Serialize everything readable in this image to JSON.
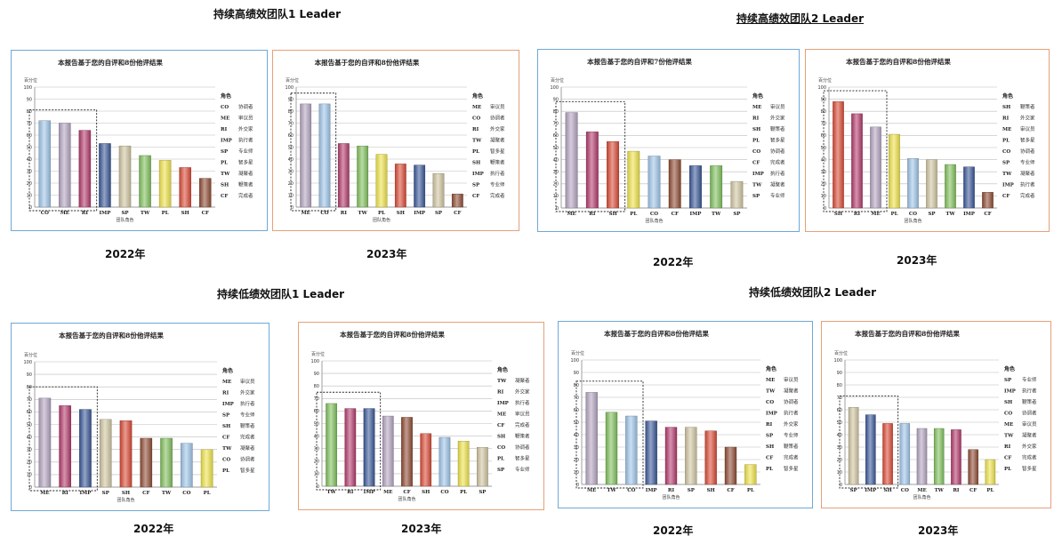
{
  "page": {
    "group_titles": [
      "持续高绩效团队1 Leader",
      "持续高绩效团队2 Leader",
      "持续低绩效团队1 Leader",
      "持续低绩效团队2 Leader"
    ],
    "year_labels": [
      "2022年",
      "2023年",
      "2022年",
      "2023年",
      "2022年",
      "2023年",
      "2022年",
      "2023年"
    ]
  },
  "colors": {
    "CO": "#9ec4e8",
    "ME": "#b3a4c0",
    "RI": "#b23a6b",
    "IMP": "#3a5797",
    "SP": "#cfc4a0",
    "TW": "#7fbf5c",
    "PL": "#eee24a",
    "SH": "#d94a36",
    "CF": "#8e4b34",
    "border_blue": "#6fa8d6",
    "border_orange": "#e6a07a"
  },
  "chart_data": [
    {
      "type": "bar",
      "title": "本报告基于您的自评和8份他评结果",
      "ylabel": "百分位",
      "xlabel": "团队角色",
      "ylim": [
        0,
        100
      ],
      "y_ticks": [
        0,
        10,
        20,
        30,
        40,
        50,
        60,
        70,
        80,
        90,
        100
      ],
      "categories": [
        "CO",
        "ME",
        "RI",
        "IMP",
        "SP",
        "TW",
        "PL",
        "SH",
        "CF"
      ],
      "values": [
        72,
        70,
        64,
        53,
        51,
        43,
        39,
        33,
        24
      ],
      "highlight_count": 3,
      "legend_title": "角色",
      "legend": [
        {
          "code": "CO",
          "name": "协调者"
        },
        {
          "code": "ME",
          "name": "审议员"
        },
        {
          "code": "RI",
          "name": "外交家"
        },
        {
          "code": "IMP",
          "name": "执行者"
        },
        {
          "code": "SP",
          "name": "专业师"
        },
        {
          "code": "PL",
          "name": "智多星"
        },
        {
          "code": "TW",
          "name": "凝聚者"
        },
        {
          "code": "SH",
          "name": "鞭策者"
        },
        {
          "code": "CF",
          "name": "完成者"
        }
      ]
    },
    {
      "type": "bar",
      "title": "本报告基于您的自评和8份他评结果",
      "ylabel": "百分位",
      "xlabel": "团队角色",
      "ylim": [
        0,
        100
      ],
      "y_ticks": [
        0,
        10,
        20,
        30,
        40,
        50,
        60,
        70,
        80,
        90,
        100
      ],
      "categories": [
        "ME",
        "CO",
        "RI",
        "TW",
        "PL",
        "SH",
        "IMP",
        "SP",
        "CF"
      ],
      "values": [
        86,
        86,
        53,
        51,
        44,
        36,
        35,
        28,
        11
      ],
      "highlight_count": 2,
      "legend_title": "角色",
      "legend": [
        {
          "code": "ME",
          "name": "审议员"
        },
        {
          "code": "CO",
          "name": "协调者"
        },
        {
          "code": "RI",
          "name": "外交家"
        },
        {
          "code": "TW",
          "name": "凝聚者"
        },
        {
          "code": "PL",
          "name": "智多星"
        },
        {
          "code": "SH",
          "name": "鞭策者"
        },
        {
          "code": "IMP",
          "name": "执行者"
        },
        {
          "code": "SP",
          "name": "专业师"
        },
        {
          "code": "CF",
          "name": "完成者"
        }
      ]
    },
    {
      "type": "bar",
      "title": "本报告基于您的自评和7份他评结果",
      "ylabel": "百分位",
      "xlabel": "团队角色",
      "ylim": [
        0,
        100
      ],
      "y_ticks": [
        0,
        10,
        20,
        30,
        40,
        50,
        60,
        70,
        80,
        90,
        100
      ],
      "categories": [
        "ME",
        "RI",
        "SH",
        "PL",
        "CO",
        "CF",
        "IMP",
        "TW",
        "SP"
      ],
      "values": [
        79,
        63,
        55,
        47,
        43,
        40,
        35,
        35,
        22
      ],
      "highlight_count": 3,
      "legend_title": "角色",
      "legend": [
        {
          "code": "ME",
          "name": "审议员"
        },
        {
          "code": "RI",
          "name": "外交家"
        },
        {
          "code": "SH",
          "name": "鞭策者"
        },
        {
          "code": "PL",
          "name": "智多星"
        },
        {
          "code": "CO",
          "name": "协调者"
        },
        {
          "code": "CF",
          "name": "完成者"
        },
        {
          "code": "IMP",
          "name": "执行者"
        },
        {
          "code": "TW",
          "name": "凝聚者"
        },
        {
          "code": "SP",
          "name": "专业师"
        }
      ]
    },
    {
      "type": "bar",
      "title": "本报告基于您的自评和8份他评结果",
      "ylabel": "百分位",
      "xlabel": "团队角色",
      "ylim": [
        0,
        100
      ],
      "y_ticks": [
        0,
        10,
        20,
        30,
        40,
        50,
        60,
        70,
        80,
        90,
        100
      ],
      "categories": [
        "SH",
        "RI",
        "ME",
        "PL",
        "CO",
        "SP",
        "TW",
        "IMP",
        "CF"
      ],
      "values": [
        88,
        78,
        67,
        61,
        41,
        40,
        36,
        34,
        13
      ],
      "highlight_count": 3,
      "legend_title": "角色",
      "legend": [
        {
          "code": "SH",
          "name": "鞭策者"
        },
        {
          "code": "RI",
          "name": "外交家"
        },
        {
          "code": "ME",
          "name": "审议员"
        },
        {
          "code": "PL",
          "name": "智多星"
        },
        {
          "code": "CO",
          "name": "协调者"
        },
        {
          "code": "SP",
          "name": "专业师"
        },
        {
          "code": "TW",
          "name": "凝聚者"
        },
        {
          "code": "IMP",
          "name": "执行者"
        },
        {
          "code": "CF",
          "name": "完成者"
        }
      ]
    },
    {
      "type": "bar",
      "title": "本报告基于您的自评和8份他评结果",
      "ylabel": "百分位",
      "xlabel": "团队角色",
      "ylim": [
        0,
        100
      ],
      "y_ticks": [
        0,
        10,
        20,
        30,
        40,
        50,
        60,
        70,
        80,
        90,
        100
      ],
      "categories": [
        "ME",
        "RI",
        "IMP",
        "SP",
        "SH",
        "CF",
        "TW",
        "CO",
        "PL"
      ],
      "values": [
        71,
        65,
        62,
        54,
        53,
        39,
        39,
        35,
        30
      ],
      "highlight_count": 3,
      "legend_title": "角色",
      "legend": [
        {
          "code": "ME",
          "name": "审议员"
        },
        {
          "code": "RI",
          "name": "外交家"
        },
        {
          "code": "IMP",
          "name": "执行者"
        },
        {
          "code": "SP",
          "name": "专业师"
        },
        {
          "code": "SH",
          "name": "鞭策者"
        },
        {
          "code": "CF",
          "name": "完成者"
        },
        {
          "code": "TW",
          "name": "凝聚者"
        },
        {
          "code": "CO",
          "name": "协调者"
        },
        {
          "code": "PL",
          "name": "智多星"
        }
      ]
    },
    {
      "type": "bar",
      "title": "本报告基于您的自评和8份他评结果",
      "ylabel": "百分位",
      "xlabel": "团队角色",
      "ylim": [
        0,
        100
      ],
      "y_ticks": [
        0,
        10,
        20,
        30,
        40,
        50,
        60,
        70,
        80,
        90,
        100
      ],
      "categories": [
        "TW",
        "RI",
        "IMP",
        "ME",
        "CF",
        "SH",
        "CO",
        "PL",
        "SP"
      ],
      "values": [
        66,
        62,
        62,
        56,
        55,
        42,
        39,
        36,
        31
      ],
      "highlight_count": 3,
      "legend_title": "角色",
      "legend": [
        {
          "code": "TW",
          "name": "凝聚者"
        },
        {
          "code": "RI",
          "name": "外交家"
        },
        {
          "code": "IMP",
          "name": "执行者"
        },
        {
          "code": "ME",
          "name": "审议员"
        },
        {
          "code": "CF",
          "name": "完成者"
        },
        {
          "code": "SH",
          "name": "鞭策者"
        },
        {
          "code": "CO",
          "name": "协调者"
        },
        {
          "code": "PL",
          "name": "智多星"
        },
        {
          "code": "SP",
          "name": "专业师"
        }
      ]
    },
    {
      "type": "bar",
      "title": "本报告基于您的自评和8份他评结果",
      "ylabel": "百分位",
      "xlabel": "团队角色",
      "ylim": [
        0,
        100
      ],
      "y_ticks": [
        0,
        10,
        20,
        30,
        40,
        50,
        60,
        70,
        80,
        90,
        100
      ],
      "categories": [
        "ME",
        "TW",
        "CO",
        "IMP",
        "RI",
        "SP",
        "SH",
        "CF",
        "PL"
      ],
      "values": [
        74,
        58,
        55,
        51,
        46,
        46,
        43,
        30,
        16
      ],
      "highlight_count": 3,
      "legend_title": "角色",
      "legend": [
        {
          "code": "ME",
          "name": "审议员"
        },
        {
          "code": "TW",
          "name": "凝聚者"
        },
        {
          "code": "CO",
          "name": "协调者"
        },
        {
          "code": "IMP",
          "name": "执行者"
        },
        {
          "code": "RI",
          "name": "外交家"
        },
        {
          "code": "SP",
          "name": "专业师"
        },
        {
          "code": "SH",
          "name": "鞭策者"
        },
        {
          "code": "CF",
          "name": "完成者"
        },
        {
          "code": "PL",
          "name": "智多星"
        }
      ]
    },
    {
      "type": "bar",
      "title": "本报告基于您的自评和8份他评结果",
      "ylabel": "百分位",
      "xlabel": "团队角色",
      "ylim": [
        0,
        100
      ],
      "y_ticks": [
        0,
        10,
        20,
        30,
        40,
        50,
        60,
        70,
        80,
        90,
        100
      ],
      "categories": [
        "SP",
        "IMP",
        "SH",
        "CO",
        "ME",
        "TW",
        "RI",
        "CF",
        "PL"
      ],
      "values": [
        62,
        56,
        49,
        49,
        45,
        45,
        44,
        28,
        20
      ],
      "highlight_count": 3,
      "legend_title": "角色",
      "legend": [
        {
          "code": "SP",
          "name": "专业师"
        },
        {
          "code": "IMP",
          "name": "执行者"
        },
        {
          "code": "SH",
          "name": "鞭策者"
        },
        {
          "code": "CO",
          "name": "协调者"
        },
        {
          "code": "ME",
          "name": "审议员"
        },
        {
          "code": "TW",
          "name": "凝聚者"
        },
        {
          "code": "RI",
          "name": "外交家"
        },
        {
          "code": "CF",
          "name": "完成者"
        },
        {
          "code": "PL",
          "name": "智多星"
        }
      ]
    }
  ]
}
